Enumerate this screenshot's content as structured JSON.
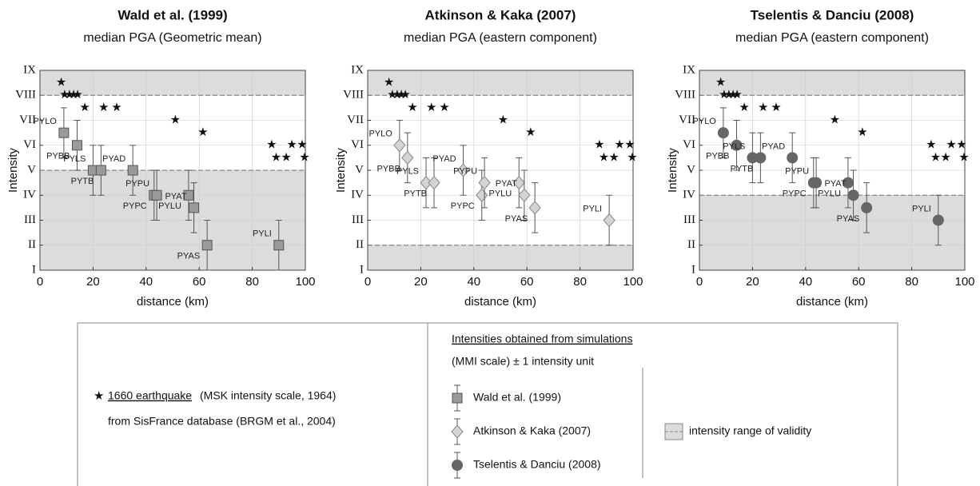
{
  "chart_data": [
    {
      "type": "scatter",
      "title": "Wald et al. (1999)",
      "subtitle": "median PGA (Geometric mean)",
      "xlabel": "distance (km)",
      "ylabel": "Intensity",
      "xlim": [
        0,
        100
      ],
      "xticks": [
        0,
        20,
        40,
        60,
        80,
        100
      ],
      "ylim": [
        1,
        9
      ],
      "yticks": [
        {
          "value": 1,
          "label": "I"
        },
        {
          "value": 2,
          "label": "II"
        },
        {
          "value": 3,
          "label": "III"
        },
        {
          "value": 4,
          "label": "IV"
        },
        {
          "value": 5,
          "label": "V"
        },
        {
          "value": 6,
          "label": "VI"
        },
        {
          "value": 7,
          "label": "VII"
        },
        {
          "value": 8,
          "label": "VIII"
        },
        {
          "value": 9,
          "label": "IX"
        }
      ],
      "grid": true,
      "validity_range": [
        5,
        8
      ],
      "observed": {
        "x": [
          8,
          9.3,
          11.1,
          12.7,
          14.2,
          16.9,
          24,
          28.9,
          51,
          61.4,
          87.3,
          94.9,
          98.8,
          89,
          92.8,
          99.7
        ],
        "y": [
          8.5,
          8,
          8,
          8,
          8,
          7.5,
          7.5,
          7.5,
          7,
          6.5,
          6,
          6,
          6,
          5.5,
          5.5,
          5.5
        ]
      },
      "marker": "square",
      "color": "#9a9a9a",
      "stations": [
        "PYLO",
        "PYBB",
        "PYLS",
        "PYTB",
        "PYAD",
        "PYPC",
        "PYPU",
        "PYLU",
        "PYAT",
        "PYAS",
        "PYLI"
      ],
      "x": [
        9,
        14,
        20,
        23,
        35,
        43,
        44,
        56,
        58,
        63,
        90
      ],
      "y": [
        6.5,
        6,
        5,
        5,
        5,
        4,
        4,
        4,
        3.5,
        2,
        2
      ],
      "error": 1
    },
    {
      "type": "scatter",
      "title": "Atkinson & Kaka (2007)",
      "subtitle": "median PGA (eastern component)",
      "xlabel": "distance (km)",
      "ylabel": "Intensity",
      "xlim": [
        0,
        100
      ],
      "xticks": [
        0,
        20,
        40,
        60,
        80,
        100
      ],
      "ylim": [
        1,
        9
      ],
      "yticks": [
        {
          "value": 1,
          "label": "I"
        },
        {
          "value": 2,
          "label": "II"
        },
        {
          "value": 3,
          "label": "III"
        },
        {
          "value": 4,
          "label": "IV"
        },
        {
          "value": 5,
          "label": "V"
        },
        {
          "value": 6,
          "label": "VI"
        },
        {
          "value": 7,
          "label": "VII"
        },
        {
          "value": 8,
          "label": "VIII"
        },
        {
          "value": 9,
          "label": "IX"
        }
      ],
      "grid": true,
      "validity_range": [
        2,
        8
      ],
      "observed": {
        "x": [
          8,
          9.3,
          11.1,
          12.7,
          14.2,
          16.9,
          24,
          28.9,
          51,
          61.4,
          87.3,
          94.9,
          98.8,
          89,
          92.8,
          99.7
        ],
        "y": [
          8.5,
          8,
          8,
          8,
          8,
          7.5,
          7.5,
          7.5,
          7,
          6.5,
          6,
          6,
          6,
          5.5,
          5.5,
          5.5
        ]
      },
      "marker": "diamond",
      "color": "#d4d4d4",
      "stations": [
        "PYLO",
        "PYBB",
        "PYLS",
        "PYTB",
        "PYAD",
        "PYPC",
        "PYPU",
        "PYLU",
        "PYAT",
        "PYAS",
        "PYLI"
      ],
      "x": [
        12,
        15,
        22,
        25,
        36,
        43,
        44,
        57,
        59,
        63,
        91
      ],
      "y": [
        6,
        5.5,
        4.5,
        4.5,
        5,
        4,
        4.5,
        4.5,
        4,
        3.5,
        3
      ],
      "error": 1
    },
    {
      "type": "scatter",
      "title": "Tselentis & Danciu (2008)",
      "subtitle": "median PGA (eastern component)",
      "xlabel": "distance (km)",
      "ylabel": "Intensity",
      "xlim": [
        0,
        100
      ],
      "xticks": [
        0,
        20,
        40,
        60,
        80,
        100
      ],
      "ylim": [
        1,
        9
      ],
      "yticks": [
        {
          "value": 1,
          "label": "I"
        },
        {
          "value": 2,
          "label": "II"
        },
        {
          "value": 3,
          "label": "III"
        },
        {
          "value": 4,
          "label": "IV"
        },
        {
          "value": 5,
          "label": "V"
        },
        {
          "value": 6,
          "label": "VI"
        },
        {
          "value": 7,
          "label": "VII"
        },
        {
          "value": 8,
          "label": "VIII"
        },
        {
          "value": 9,
          "label": "IX"
        }
      ],
      "grid": true,
      "validity_range": [
        4,
        8
      ],
      "observed": {
        "x": [
          8,
          9.3,
          11.1,
          12.7,
          14.2,
          16.9,
          24,
          28.9,
          51,
          61.4,
          87.3,
          94.9,
          98.8,
          89,
          92.8,
          99.7
        ],
        "y": [
          8.5,
          8,
          8,
          8,
          8,
          7.5,
          7.5,
          7.5,
          7,
          6.5,
          6,
          6,
          6,
          5.5,
          5.5,
          5.5
        ]
      },
      "marker": "circle",
      "color": "#666666",
      "stations": [
        "PYLO",
        "PYBB",
        "PYLS",
        "PYTB",
        "PYAD",
        "PYPC",
        "PYPU",
        "PYLU",
        "PYAT",
        "PYAS",
        "PYLI"
      ],
      "x": [
        9,
        14,
        20,
        23,
        35,
        43,
        44,
        56,
        58,
        63,
        90
      ],
      "y": [
        6.5,
        6,
        5.5,
        5.5,
        5.5,
        4.5,
        4.5,
        4.5,
        4,
        3.5,
        3
      ],
      "error": 1
    }
  ],
  "legend": {
    "observed_name": "1660 earthquake",
    "observed_scale": "(MSK intensity scale, 1964)",
    "observed_source": "from SisFrance database (BRGM et al., 2004)",
    "simulation_header": "Intensities obtained from simulations",
    "simulation_note": "(MMI scale) ± 1 intensity unit",
    "entries": [
      "Wald et al. (1999)",
      "Atkinson & Kaka (2007)",
      "Tselentis & Danciu (2008)"
    ],
    "validity": "intensity range of validity"
  }
}
